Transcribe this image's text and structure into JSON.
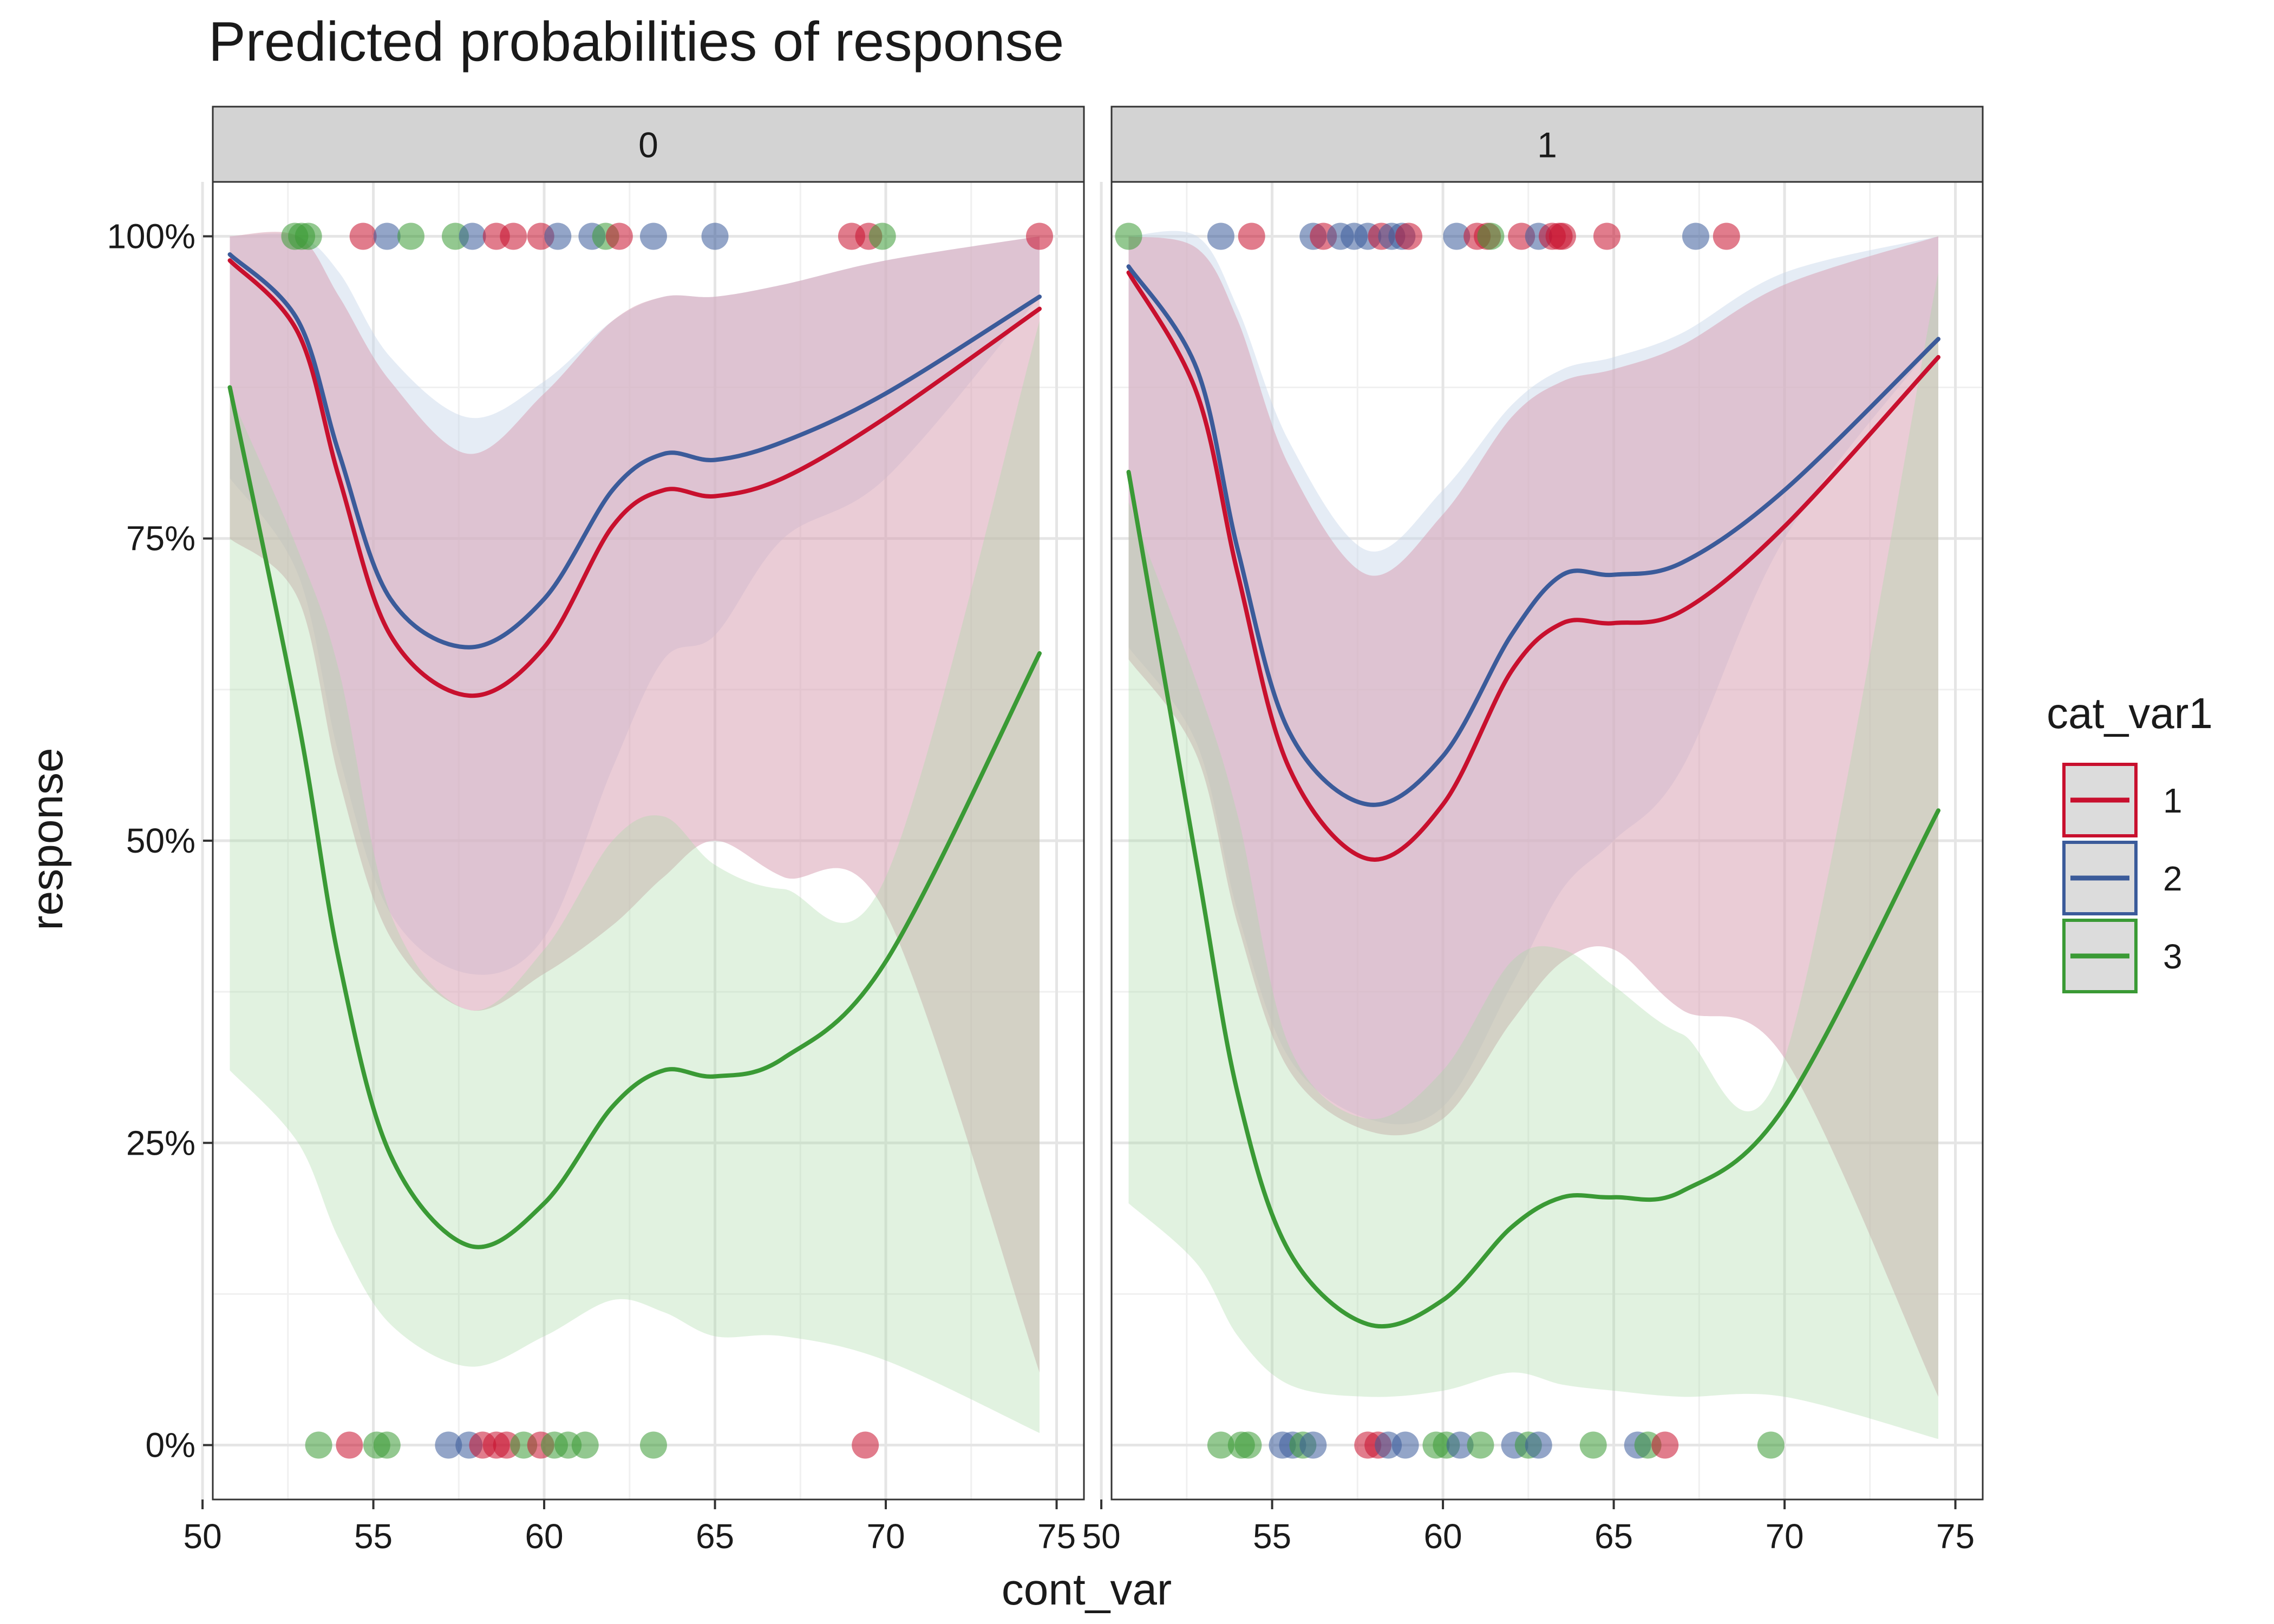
{
  "chart_data": {
    "type": "line",
    "title": "Predicted probabilities of response",
    "xlabel": "cont_var",
    "ylabel": "response",
    "xlim": [
      50.3,
      75.8
    ],
    "ylim": [
      -0.045,
      1.045
    ],
    "x_ticks": [
      50,
      55,
      60,
      65,
      70,
      75
    ],
    "x_tick_labels": [
      "50",
      "55",
      "60",
      "65",
      "70",
      "75"
    ],
    "y_ticks": [
      0,
      0.25,
      0.5,
      0.75,
      1
    ],
    "y_tick_labels": [
      "0%",
      "25%",
      "50%",
      "75%",
      "100%"
    ],
    "grid": true,
    "facet_labels": [
      "0",
      "1"
    ],
    "legend": {
      "title": "cat_var1",
      "position": "right",
      "entries": [
        "1",
        "2",
        "3"
      ]
    },
    "colors": {
      "1": "#c8102e",
      "2": "#3b5b9a",
      "3": "#3a9a35",
      "panel_border": "#333333",
      "grid": "#e5e5e5",
      "strip_bg": "#d3d3d3"
    },
    "facets": [
      {
        "label": "0",
        "x": [
          50.8,
          52.8,
          54,
          55.5,
          57.8,
          60,
          62,
          63.5,
          65,
          67,
          70,
          74.5
        ],
        "series": [
          {
            "name": "1",
            "values": [
              0.98,
              0.92,
              0.8,
              0.67,
              0.62,
              0.66,
              0.76,
              0.79,
              0.785,
              0.8,
              0.85,
              0.94
            ],
            "lower": [
              0.75,
              0.7,
              0.55,
              0.42,
              0.36,
              0.39,
              0.43,
              0.47,
              0.5,
              0.47,
              0.44,
              0.06
            ],
            "upper": [
              1,
              1,
              0.95,
              0.88,
              0.82,
              0.87,
              0.93,
              0.95,
              0.95,
              0.96,
              0.98,
              1
            ]
          },
          {
            "name": "2",
            "values": [
              0.985,
              0.93,
              0.82,
              0.7,
              0.66,
              0.7,
              0.79,
              0.82,
              0.815,
              0.83,
              0.87,
              0.95
            ],
            "lower": [
              0.8,
              0.72,
              0.57,
              0.44,
              0.39,
              0.42,
              0.56,
              0.65,
              0.67,
              0.75,
              0.8,
              0.95
            ],
            "upper": [
              1,
              1,
              0.97,
              0.9,
              0.85,
              0.88,
              0.93,
              0.95,
              0.95,
              0.96,
              0.98,
              1
            ]
          },
          {
            "name": "3",
            "values": [
              0.875,
              0.6,
              0.4,
              0.24,
              0.165,
              0.2,
              0.28,
              0.31,
              0.305,
              0.32,
              0.4,
              0.655
            ],
            "lower": [
              0.31,
              0.25,
              0.17,
              0.1,
              0.065,
              0.09,
              0.12,
              0.11,
              0.09,
              0.09,
              0.07,
              0.01
            ],
            "upper": [
              0.87,
              0.74,
              0.64,
              0.44,
              0.36,
              0.41,
              0.5,
              0.52,
              0.48,
              0.46,
              0.47,
              0.93
            ]
          }
        ],
        "points_top": [
          {
            "x": 52.7,
            "g": 3
          },
          {
            "x": 52.9,
            "g": 3
          },
          {
            "x": 53.1,
            "g": 3
          },
          {
            "x": 54.7,
            "g": 1
          },
          {
            "x": 55.4,
            "g": 2
          },
          {
            "x": 56.1,
            "g": 3
          },
          {
            "x": 57.4,
            "g": 3
          },
          {
            "x": 57.9,
            "g": 2
          },
          {
            "x": 58.6,
            "g": 1
          },
          {
            "x": 59.1,
            "g": 1
          },
          {
            "x": 59.9,
            "g": 1
          },
          {
            "x": 60.4,
            "g": 2
          },
          {
            "x": 61.4,
            "g": 2
          },
          {
            "x": 61.8,
            "g": 3
          },
          {
            "x": 62.2,
            "g": 1
          },
          {
            "x": 63.2,
            "g": 2
          },
          {
            "x": 65.0,
            "g": 2
          },
          {
            "x": 69.0,
            "g": 1
          },
          {
            "x": 69.5,
            "g": 1
          },
          {
            "x": 69.9,
            "g": 3
          },
          {
            "x": 74.5,
            "g": 1
          }
        ],
        "points_bottom": [
          {
            "x": 53.4,
            "g": 3
          },
          {
            "x": 54.3,
            "g": 1
          },
          {
            "x": 55.1,
            "g": 3
          },
          {
            "x": 55.4,
            "g": 3
          },
          {
            "x": 57.2,
            "g": 2
          },
          {
            "x": 57.8,
            "g": 2
          },
          {
            "x": 58.2,
            "g": 1
          },
          {
            "x": 58.6,
            "g": 1
          },
          {
            "x": 58.9,
            "g": 1
          },
          {
            "x": 59.4,
            "g": 3
          },
          {
            "x": 59.9,
            "g": 1
          },
          {
            "x": 60.3,
            "g": 3
          },
          {
            "x": 60.7,
            "g": 3
          },
          {
            "x": 61.2,
            "g": 3
          },
          {
            "x": 63.2,
            "g": 3
          },
          {
            "x": 69.4,
            "g": 1
          }
        ]
      },
      {
        "label": "1",
        "x": [
          50.8,
          52.8,
          54,
          55.5,
          57.8,
          60,
          62,
          63.5,
          65,
          67,
          70,
          74.5
        ],
        "series": [
          {
            "name": "1",
            "values": [
              0.97,
              0.87,
              0.72,
              0.56,
              0.485,
              0.53,
              0.64,
              0.68,
              0.68,
              0.69,
              0.76,
              0.9
            ],
            "lower": [
              0.65,
              0.57,
              0.43,
              0.31,
              0.26,
              0.27,
              0.35,
              0.4,
              0.41,
              0.36,
              0.32,
              0.04
            ],
            "upper": [
              1,
              0.99,
              0.93,
              0.81,
              0.72,
              0.77,
              0.85,
              0.88,
              0.89,
              0.91,
              0.96,
              1
            ]
          },
          {
            "name": "2",
            "values": [
              0.975,
              0.89,
              0.74,
              0.59,
              0.53,
              0.57,
              0.67,
              0.72,
              0.72,
              0.73,
              0.79,
              0.915
            ],
            "lower": [
              0.66,
              0.58,
              0.44,
              0.32,
              0.27,
              0.28,
              0.38,
              0.46,
              0.5,
              0.56,
              0.75,
              0.915
            ],
            "upper": [
              1,
              1,
              0.94,
              0.83,
              0.74,
              0.79,
              0.86,
              0.89,
              0.9,
              0.92,
              0.97,
              1
            ]
          },
          {
            "name": "3",
            "values": [
              0.805,
              0.48,
              0.29,
              0.16,
              0.1,
              0.12,
              0.18,
              0.205,
              0.205,
              0.21,
              0.28,
              0.525
            ],
            "lower": [
              0.2,
              0.15,
              0.09,
              0.05,
              0.04,
              0.045,
              0.06,
              0.05,
              0.045,
              0.04,
              0.04,
              0.005
            ],
            "upper": [
              0.78,
              0.63,
              0.52,
              0.33,
              0.27,
              0.31,
              0.4,
              0.41,
              0.38,
              0.34,
              0.32,
              0.97
            ]
          }
        ],
        "points_top": [
          {
            "x": 50.8,
            "g": 3
          },
          {
            "x": 53.5,
            "g": 2
          },
          {
            "x": 54.4,
            "g": 1
          },
          {
            "x": 56.2,
            "g": 2
          },
          {
            "x": 56.5,
            "g": 1
          },
          {
            "x": 57.0,
            "g": 2
          },
          {
            "x": 57.4,
            "g": 2
          },
          {
            "x": 57.8,
            "g": 2
          },
          {
            "x": 58.2,
            "g": 1
          },
          {
            "x": 58.5,
            "g": 2
          },
          {
            "x": 58.8,
            "g": 2
          },
          {
            "x": 59.0,
            "g": 1
          },
          {
            "x": 60.4,
            "g": 2
          },
          {
            "x": 61.0,
            "g": 1
          },
          {
            "x": 61.3,
            "g": 1
          },
          {
            "x": 61.4,
            "g": 3
          },
          {
            "x": 62.3,
            "g": 1
          },
          {
            "x": 62.8,
            "g": 2
          },
          {
            "x": 63.2,
            "g": 1
          },
          {
            "x": 63.4,
            "g": 1
          },
          {
            "x": 63.5,
            "g": 1
          },
          {
            "x": 64.8,
            "g": 1
          },
          {
            "x": 67.4,
            "g": 2
          },
          {
            "x": 68.3,
            "g": 1
          }
        ],
        "points_bottom": [
          {
            "x": 53.5,
            "g": 3
          },
          {
            "x": 54.1,
            "g": 3
          },
          {
            "x": 54.3,
            "g": 3
          },
          {
            "x": 55.3,
            "g": 2
          },
          {
            "x": 55.6,
            "g": 2
          },
          {
            "x": 55.9,
            "g": 3
          },
          {
            "x": 56.2,
            "g": 2
          },
          {
            "x": 57.8,
            "g": 1
          },
          {
            "x": 58.1,
            "g": 1
          },
          {
            "x": 58.4,
            "g": 2
          },
          {
            "x": 58.9,
            "g": 2
          },
          {
            "x": 59.8,
            "g": 3
          },
          {
            "x": 60.1,
            "g": 3
          },
          {
            "x": 60.5,
            "g": 2
          },
          {
            "x": 61.1,
            "g": 3
          },
          {
            "x": 62.1,
            "g": 2
          },
          {
            "x": 62.5,
            "g": 3
          },
          {
            "x": 62.8,
            "g": 2
          },
          {
            "x": 64.4,
            "g": 3
          },
          {
            "x": 65.7,
            "g": 2
          },
          {
            "x": 66.0,
            "g": 3
          },
          {
            "x": 66.5,
            "g": 1
          },
          {
            "x": 69.6,
            "g": 3
          }
        ]
      }
    ]
  }
}
